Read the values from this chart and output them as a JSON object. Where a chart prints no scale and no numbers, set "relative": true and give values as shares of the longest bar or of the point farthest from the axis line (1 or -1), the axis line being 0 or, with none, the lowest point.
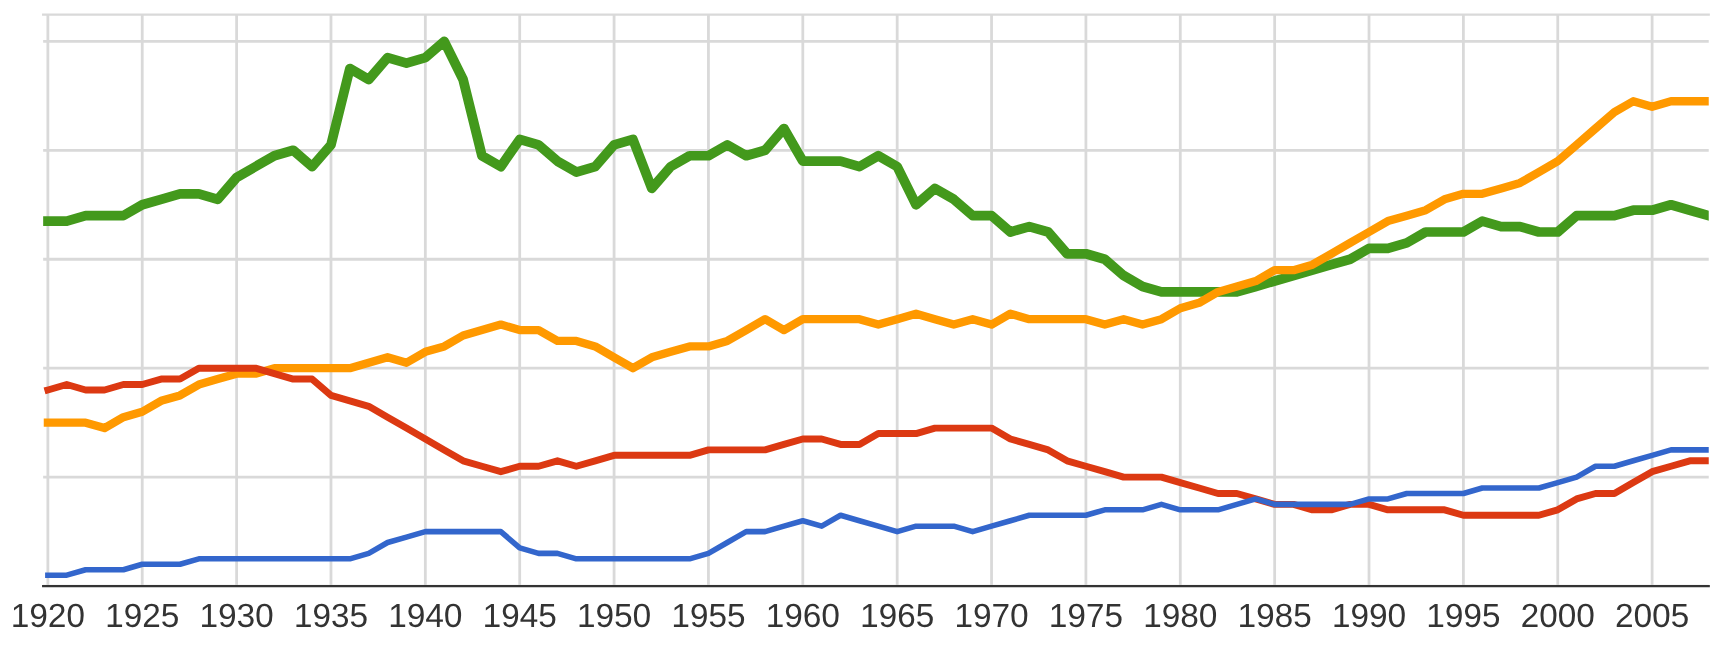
{
  "chart_data": {
    "type": "line",
    "relative": true,
    "grid": true,
    "marker": "none",
    "line_style": "solid",
    "x": [
      1920,
      1921,
      1922,
      1923,
      1924,
      1925,
      1926,
      1927,
      1928,
      1929,
      1930,
      1931,
      1932,
      1933,
      1934,
      1935,
      1936,
      1937,
      1938,
      1939,
      1940,
      1941,
      1942,
      1943,
      1944,
      1945,
      1946,
      1947,
      1948,
      1949,
      1950,
      1951,
      1952,
      1953,
      1954,
      1955,
      1956,
      1957,
      1958,
      1959,
      1960,
      1961,
      1962,
      1963,
      1964,
      1965,
      1966,
      1967,
      1968,
      1969,
      1970,
      1971,
      1972,
      1973,
      1974,
      1975,
      1976,
      1977,
      1978,
      1979,
      1980,
      1981,
      1982,
      1983,
      1984,
      1985,
      1986,
      1987,
      1988,
      1989,
      1990,
      1991,
      1992,
      1993,
      1994,
      1995,
      1996,
      1997,
      1998,
      1999,
      2000,
      2001,
      2002,
      2003,
      2004,
      2005,
      2006,
      2007,
      2008
    ],
    "xlim": [
      1919.75,
      2008
    ],
    "xticks": [
      1920,
      1925,
      1930,
      1935,
      1940,
      1945,
      1950,
      1955,
      1960,
      1965,
      1970,
      1975,
      1980,
      1985,
      1990,
      1995,
      2000,
      2005
    ],
    "series": [
      {
        "color": "#43991c",
        "values": [
          0.67,
          0.67,
          0.68,
          0.68,
          0.68,
          0.7,
          0.71,
          0.72,
          0.72,
          0.71,
          0.75,
          0.77,
          0.79,
          0.8,
          0.77,
          0.81,
          0.95,
          0.93,
          0.97,
          0.96,
          0.97,
          1.0,
          0.93,
          0.79,
          0.77,
          0.82,
          0.81,
          0.78,
          0.76,
          0.77,
          0.81,
          0.82,
          0.73,
          0.77,
          0.79,
          0.79,
          0.81,
          0.79,
          0.8,
          0.84,
          0.78,
          0.78,
          0.78,
          0.77,
          0.79,
          0.77,
          0.7,
          0.73,
          0.71,
          0.68,
          0.68,
          0.65,
          0.66,
          0.65,
          0.61,
          0.61,
          0.6,
          0.57,
          0.55,
          0.54,
          0.54,
          0.54,
          0.54,
          0.54,
          0.55,
          0.56,
          0.57,
          0.58,
          0.59,
          0.6,
          0.62,
          0.62,
          0.63,
          0.65,
          0.65,
          0.65,
          0.67,
          0.66,
          0.66,
          0.65,
          0.65,
          0.68,
          0.68,
          0.68,
          0.69,
          0.69,
          0.7,
          0.69,
          0.68
        ]
      },
      {
        "color": "#ff9900",
        "values": [
          0.3,
          0.3,
          0.3,
          0.29,
          0.31,
          0.32,
          0.34,
          0.35,
          0.37,
          0.38,
          0.39,
          0.39,
          0.4,
          0.4,
          0.4,
          0.4,
          0.4,
          0.41,
          0.42,
          0.41,
          0.43,
          0.44,
          0.46,
          0.47,
          0.48,
          0.47,
          0.47,
          0.45,
          0.45,
          0.44,
          0.42,
          0.4,
          0.42,
          0.43,
          0.44,
          0.44,
          0.45,
          0.47,
          0.49,
          0.47,
          0.49,
          0.49,
          0.49,
          0.49,
          0.48,
          0.49,
          0.5,
          0.49,
          0.48,
          0.49,
          0.48,
          0.5,
          0.49,
          0.49,
          0.49,
          0.49,
          0.48,
          0.49,
          0.48,
          0.49,
          0.51,
          0.52,
          0.54,
          0.55,
          0.56,
          0.58,
          0.58,
          0.59,
          0.61,
          0.63,
          0.65,
          0.67,
          0.68,
          0.69,
          0.71,
          0.72,
          0.72,
          0.73,
          0.74,
          0.76,
          0.78,
          0.81,
          0.84,
          0.87,
          0.89,
          0.88,
          0.89,
          0.89,
          0.89
        ]
      },
      {
        "color": "#dc3912",
        "values": [
          0.36,
          0.37,
          0.36,
          0.36,
          0.37,
          0.37,
          0.38,
          0.38,
          0.4,
          0.4,
          0.4,
          0.4,
          0.39,
          0.38,
          0.38,
          0.35,
          0.34,
          0.33,
          0.31,
          0.29,
          0.27,
          0.25,
          0.23,
          0.22,
          0.21,
          0.22,
          0.22,
          0.23,
          0.22,
          0.23,
          0.24,
          0.24,
          0.24,
          0.24,
          0.24,
          0.25,
          0.25,
          0.25,
          0.25,
          0.26,
          0.27,
          0.27,
          0.26,
          0.26,
          0.28,
          0.28,
          0.28,
          0.29,
          0.29,
          0.29,
          0.29,
          0.27,
          0.26,
          0.25,
          0.23,
          0.22,
          0.21,
          0.2,
          0.2,
          0.2,
          0.19,
          0.18,
          0.17,
          0.17,
          0.16,
          0.15,
          0.15,
          0.14,
          0.14,
          0.15,
          0.15,
          0.14,
          0.14,
          0.14,
          0.14,
          0.13,
          0.13,
          0.13,
          0.13,
          0.13,
          0.14,
          0.16,
          0.17,
          0.17,
          0.19,
          0.21,
          0.22,
          0.23,
          0.23
        ]
      },
      {
        "color": "#3366cc",
        "values": [
          0.02,
          0.02,
          0.03,
          0.03,
          0.03,
          0.04,
          0.04,
          0.04,
          0.05,
          0.05,
          0.05,
          0.05,
          0.05,
          0.05,
          0.05,
          0.05,
          0.05,
          0.06,
          0.08,
          0.09,
          0.1,
          0.1,
          0.1,
          0.1,
          0.1,
          0.07,
          0.06,
          0.06,
          0.05,
          0.05,
          0.05,
          0.05,
          0.05,
          0.05,
          0.05,
          0.06,
          0.08,
          0.1,
          0.1,
          0.11,
          0.12,
          0.11,
          0.13,
          0.12,
          0.11,
          0.1,
          0.11,
          0.11,
          0.11,
          0.1,
          0.11,
          0.12,
          0.13,
          0.13,
          0.13,
          0.13,
          0.14,
          0.14,
          0.14,
          0.15,
          0.14,
          0.14,
          0.14,
          0.15,
          0.16,
          0.15,
          0.15,
          0.15,
          0.15,
          0.15,
          0.16,
          0.16,
          0.17,
          0.17,
          0.17,
          0.17,
          0.18,
          0.18,
          0.18,
          0.18,
          0.19,
          0.2,
          0.22,
          0.22,
          0.23,
          0.24,
          0.25,
          0.25,
          0.25
        ]
      }
    ]
  }
}
